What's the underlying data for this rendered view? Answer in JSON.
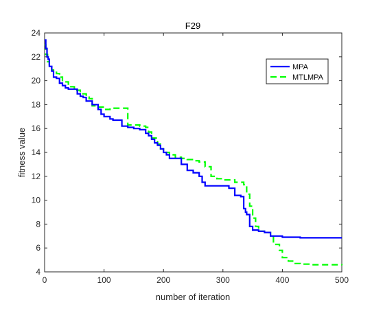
{
  "chart_data": {
    "type": "line",
    "title": "F29",
    "xlabel": "number of iteration",
    "ylabel": "fitness value",
    "xlim": [
      0,
      500
    ],
    "ylim": [
      4,
      24
    ],
    "xticks": [
      0,
      100,
      200,
      300,
      400,
      500
    ],
    "yticks": [
      4,
      6,
      8,
      10,
      12,
      14,
      16,
      18,
      20,
      22,
      24
    ],
    "grid": false,
    "legend_position": "top-right",
    "series": [
      {
        "name": "MPA",
        "color": "#0000ff",
        "style": "solid",
        "x": [
          0,
          2,
          4,
          6,
          8,
          12,
          15,
          20,
          25,
          30,
          35,
          40,
          45,
          55,
          60,
          65,
          70,
          80,
          90,
          95,
          100,
          110,
          115,
          130,
          140,
          150,
          160,
          170,
          175,
          180,
          185,
          190,
          195,
          200,
          205,
          210,
          220,
          230,
          240,
          250,
          260,
          265,
          270,
          280,
          300,
          310,
          320,
          330,
          335,
          338,
          340,
          345,
          350,
          360,
          370,
          380,
          390,
          400,
          420,
          430,
          500
        ],
        "y": [
          23.4,
          22.7,
          22.0,
          21.8,
          21.2,
          20.8,
          20.3,
          20.2,
          19.8,
          19.6,
          19.4,
          19.3,
          19.3,
          18.9,
          18.7,
          18.6,
          18.3,
          18.0,
          17.6,
          17.2,
          17.0,
          16.8,
          16.7,
          16.2,
          16.1,
          16.0,
          15.9,
          15.6,
          15.4,
          15.1,
          14.8,
          14.6,
          14.3,
          14.0,
          13.8,
          13.5,
          13.5,
          13.0,
          12.5,
          12.3,
          12.0,
          11.5,
          11.2,
          11.2,
          11.2,
          11.0,
          10.4,
          10.3,
          9.3,
          9.0,
          8.8,
          7.8,
          7.5,
          7.4,
          7.3,
          7.0,
          7.0,
          6.9,
          6.9,
          6.85,
          6.85
        ]
      },
      {
        "name": "MTLMPA",
        "color": "#00ff00",
        "style": "dashed",
        "x": [
          0,
          2,
          5,
          8,
          12,
          15,
          20,
          25,
          30,
          40,
          50,
          60,
          70,
          75,
          80,
          90,
          100,
          110,
          120,
          135,
          140,
          160,
          170,
          175,
          180,
          190,
          195,
          200,
          210,
          220,
          230,
          240,
          250,
          260,
          270,
          280,
          290,
          300,
          320,
          335,
          340,
          345,
          350,
          355,
          360,
          370,
          380,
          385,
          395,
          400,
          410,
          420,
          430,
          450,
          500
        ],
        "y": [
          23.0,
          22.2,
          21.6,
          21.2,
          20.9,
          20.7,
          20.6,
          20.3,
          19.9,
          19.5,
          19.2,
          18.9,
          18.8,
          18.5,
          17.9,
          17.8,
          17.6,
          17.7,
          17.7,
          17.7,
          16.3,
          16.2,
          16.1,
          15.7,
          15.2,
          14.7,
          14.3,
          14.0,
          13.8,
          13.6,
          13.5,
          13.4,
          13.3,
          13.2,
          12.8,
          12.0,
          11.8,
          11.7,
          11.5,
          11.3,
          10.5,
          9.5,
          8.5,
          7.8,
          7.4,
          7.3,
          7.0,
          6.3,
          5.8,
          5.2,
          4.9,
          4.7,
          4.65,
          4.6,
          4.55
        ]
      }
    ]
  }
}
